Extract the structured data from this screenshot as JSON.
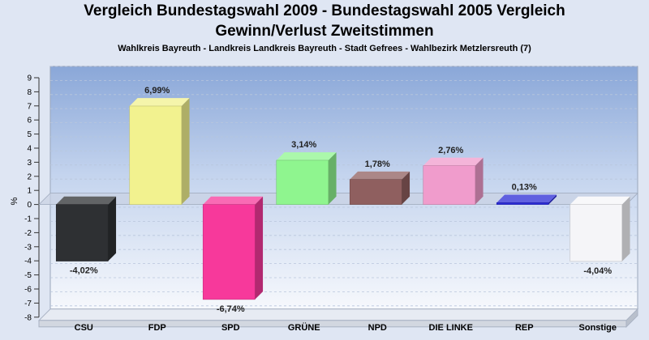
{
  "header": {
    "title_line1": "Vergleich Bundestagswahl 2009 - Bundestagswahl 2005 Vergleich",
    "title_line2": "Gewinn/Verlust Zweitstimmen",
    "subtitle": "Wahlkreis Bayreuth - Landkreis Landkreis Bayreuth - Stadt Gefrees - Wahlbezirk Metzlersreuth (7)"
  },
  "chart_data": {
    "type": "bar",
    "title": "Vergleich Bundestagswahl 2009 - Bundestagswahl 2005 Vergleich Gewinn/Verlust Zweitstimmen",
    "subtitle": "Wahlkreis Bayreuth - Landkreis Landkreis Bayreuth - Stadt Gefrees - Wahlbezirk Metzlersreuth (7)",
    "ylabel": "%",
    "xlabel": "",
    "ylim": [
      -8,
      9
    ],
    "yticks": [
      9,
      8,
      7,
      6,
      5,
      4,
      3,
      2,
      1,
      0,
      -1,
      -2,
      -3,
      -4,
      -5,
      -6,
      -7,
      -8
    ],
    "grid": true,
    "categories": [
      "CSU",
      "FDP",
      "SPD",
      "GRÜNE",
      "NPD",
      "DIE LINKE",
      "REP",
      "Sonstige"
    ],
    "values": [
      -4.02,
      6.99,
      -6.74,
      3.14,
      1.78,
      2.76,
      0.13,
      -4.04
    ],
    "value_labels": [
      "-4,02%",
      "6,99%",
      "-6,74%",
      "3,14%",
      "1,78%",
      "2,76%",
      "0,13%",
      "-4,04%"
    ],
    "colors": [
      "#2e3033",
      "#f2f28f",
      "#f7399b",
      "#8ff58f",
      "#8f5f5f",
      "#f09ccc",
      "#2b2bd6",
      "#f5f5f8"
    ]
  }
}
